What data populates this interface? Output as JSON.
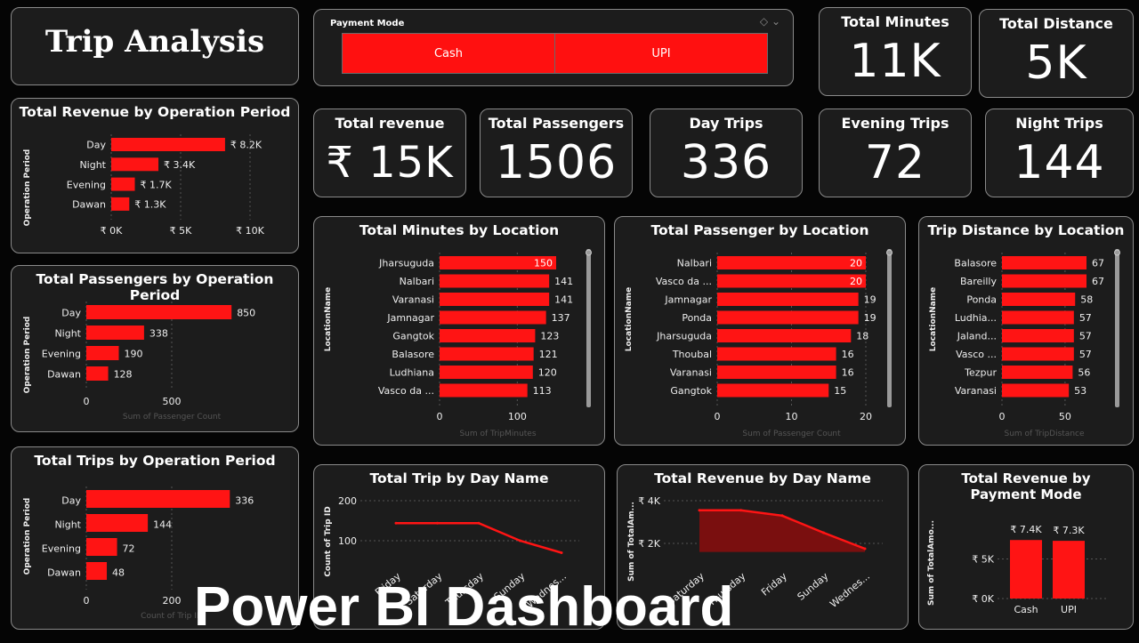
{
  "title": "Trip Analysis",
  "overlay_caption": "Power BI Dashboard",
  "colors": {
    "bar": "#ff1414",
    "card_bg": "#1c1c1c",
    "border": "#8a8a8a",
    "area_fill": "#7a0f0f"
  },
  "slicer": {
    "title": "Payment Mode",
    "options": [
      "Cash",
      "UPI"
    ],
    "icons": [
      "eraser-icon",
      "chevron-down-icon"
    ]
  },
  "kpis": {
    "total_minutes": {
      "label": "Total Minutes",
      "value": "11K"
    },
    "total_distance": {
      "label": "Total Distance",
      "value": "5K"
    },
    "total_revenue": {
      "label": "Total revenue",
      "value": "₹ 15K"
    },
    "total_passengers": {
      "label": "Total Passengers",
      "value": "1506"
    },
    "day_trips": {
      "label": "Day Trips",
      "value": "336"
    },
    "evening_trips": {
      "label": "Evening Trips",
      "value": "72"
    },
    "night_trips": {
      "label": "Night Trips",
      "value": "144"
    }
  },
  "chart_data": [
    {
      "id": "revenue_period",
      "type": "bar",
      "orientation": "horizontal",
      "title": "Total Revenue by Operation Period",
      "ylabel": "Operation Period",
      "xlabel": "",
      "categories": [
        "Day",
        "Night",
        "Evening",
        "Dawan"
      ],
      "values": [
        8200,
        3400,
        1700,
        1300
      ],
      "data_labels": [
        "₹ 8.2K",
        "₹ 3.4K",
        "₹ 1.7K",
        "₹ 1.3K"
      ],
      "xlim": [
        0,
        10000
      ],
      "ticks": [
        0,
        5000,
        10000
      ],
      "tick_labels": [
        "₹ 0K",
        "₹ 5K",
        "₹ 10K"
      ]
    },
    {
      "id": "passengers_period",
      "type": "bar",
      "orientation": "horizontal",
      "title": "Total Passengers by Operation Period",
      "ylabel": "Operation Period",
      "xlabel": "Sum of Passenger Count",
      "categories": [
        "Day",
        "Night",
        "Evening",
        "Dawan"
      ],
      "values": [
        850,
        338,
        190,
        128
      ],
      "data_labels": [
        "850",
        "338",
        "190",
        "128"
      ],
      "xlim": [
        0,
        1000
      ],
      "ticks": [
        0,
        500
      ],
      "tick_labels": [
        "0",
        "500"
      ]
    },
    {
      "id": "trips_period",
      "type": "bar",
      "orientation": "horizontal",
      "title": "Total Trips by Operation Period",
      "ylabel": "Operation Period",
      "xlabel": "Count of Trip ID",
      "categories": [
        "Day",
        "Night",
        "Evening",
        "Dawan"
      ],
      "values": [
        336,
        144,
        72,
        48
      ],
      "data_labels": [
        "336",
        "144",
        "72",
        "48"
      ],
      "xlim": [
        0,
        400
      ],
      "ticks": [
        0,
        200
      ],
      "tick_labels": [
        "0",
        "200"
      ]
    },
    {
      "id": "minutes_location",
      "type": "bar",
      "orientation": "horizontal",
      "title": "Total Minutes by Location",
      "ylabel": "LocationName",
      "xlabel": "Sum of TripMinutes",
      "categories": [
        "Jharsuguda",
        "Nalbari",
        "Varanasi",
        "Jamnagar",
        "Gangtok",
        "Balasore",
        "Ludhiana",
        "Vasco da ..."
      ],
      "values": [
        150,
        141,
        141,
        137,
        123,
        121,
        120,
        113
      ],
      "data_labels": [
        "150",
        "141",
        "141",
        "137",
        "123",
        "121",
        "120",
        "113"
      ],
      "inside_labels": [
        0
      ],
      "xlim": [
        0,
        150
      ],
      "ticks": [
        0,
        100
      ],
      "tick_labels": [
        "0",
        "100"
      ]
    },
    {
      "id": "passenger_location",
      "type": "bar",
      "orientation": "horizontal",
      "title": "Total Passenger by Location",
      "ylabel": "LocationName",
      "xlabel": "Sum of Passenger Count",
      "categories": [
        "Nalbari",
        "Vasco da ...",
        "Jamnagar",
        "Ponda",
        "Jharsuguda",
        "Thoubal",
        "Varanasi",
        "Gangtok"
      ],
      "values": [
        20,
        20,
        19,
        19,
        18,
        16,
        16,
        15
      ],
      "data_labels": [
        "20",
        "20",
        "19",
        "19",
        "18",
        "16",
        "16",
        "15"
      ],
      "inside_labels": [
        0,
        1
      ],
      "xlim": [
        0,
        20
      ],
      "ticks": [
        0,
        10,
        20
      ],
      "tick_labels": [
        "0",
        "10",
        "20"
      ]
    },
    {
      "id": "distance_location",
      "type": "bar",
      "orientation": "horizontal",
      "title": "Trip Distance by Location",
      "ylabel": "LocationName",
      "xlabel": "Sum of TripDistance",
      "categories": [
        "Balasore",
        "Bareilly",
        "Ponda",
        "Ludhia...",
        "Jaland...",
        "Vasco ...",
        "Tezpur",
        "Varanasi"
      ],
      "values": [
        67,
        67,
        58,
        57,
        57,
        57,
        56,
        53
      ],
      "data_labels": [
        "67",
        "67",
        "58",
        "57",
        "57",
        "57",
        "56",
        "53"
      ],
      "xlim": [
        0,
        67
      ],
      "ticks": [
        0,
        50
      ],
      "tick_labels": [
        "0",
        "50"
      ]
    },
    {
      "id": "trip_dayname",
      "type": "line",
      "title": "Total Trip by Day Name",
      "ylabel": "Count of Trip ID",
      "xlabel": "",
      "categories": [
        "Friday",
        "Saturday",
        "Thursday",
        "Sunday",
        "Wednes..."
      ],
      "values": [
        144,
        144,
        144,
        100,
        70
      ],
      "ylim": [
        40,
        200
      ],
      "ticks": [
        100,
        200
      ],
      "tick_labels": [
        "100",
        "200"
      ]
    },
    {
      "id": "revenue_dayname",
      "type": "area",
      "title": "Total Revenue by Day Name",
      "ylabel": "Sum of TotalAm...",
      "xlabel": "",
      "categories": [
        "Saturday",
        "Thursday",
        "Friday",
        "Sunday",
        "Wednes..."
      ],
      "values": [
        3550,
        3550,
        3300,
        2500,
        1750
      ],
      "ylim": [
        1000,
        4000
      ],
      "ticks": [
        2000,
        4000
      ],
      "tick_labels": [
        "₹ 2K",
        "₹ 4K"
      ]
    },
    {
      "id": "revenue_payment",
      "type": "bar",
      "orientation": "vertical",
      "title": "Total Revenue by Payment Mode",
      "ylabel": "Sum of TotalAmo...",
      "xlabel": "",
      "categories": [
        "Cash",
        "UPI"
      ],
      "values": [
        7400,
        7300
      ],
      "data_labels": [
        "₹ 7.4K",
        "₹ 7.3K"
      ],
      "ylim": [
        0,
        9000
      ],
      "ticks": [
        0,
        5000
      ],
      "tick_labels": [
        "₹ 0K",
        "₹ 5K"
      ]
    }
  ]
}
